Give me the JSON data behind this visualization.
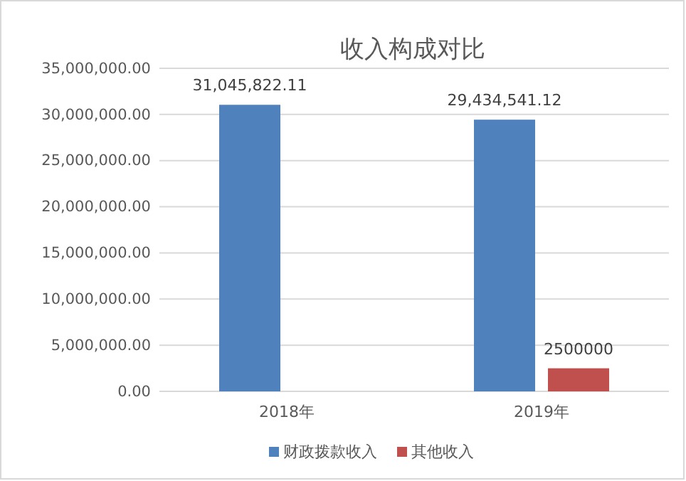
{
  "chart_data": {
    "type": "bar",
    "title": "收入构成对比",
    "categories": [
      "2018年",
      "2019年"
    ],
    "series": [
      {
        "name": "财政拨款收入",
        "color": "#4f81bd",
        "values": [
          31045822.11,
          29434541.12
        ],
        "value_labels": [
          "31,045,822.11",
          "29,434,541.12"
        ]
      },
      {
        "name": "其他收入",
        "color": "#c0504d",
        "values": [
          null,
          2500000
        ],
        "value_labels": [
          null,
          "2500000"
        ]
      }
    ],
    "ylim": [
      0,
      35000000
    ],
    "yticks": [
      {
        "value": 0,
        "label": "0.00"
      },
      {
        "value": 5000000,
        "label": "5,000,000.00"
      },
      {
        "value": 10000000,
        "label": "10,000,000.00"
      },
      {
        "value": 15000000,
        "label": "15,000,000.00"
      },
      {
        "value": 20000000,
        "label": "20,000,000.00"
      },
      {
        "value": 25000000,
        "label": "25,000,000.00"
      },
      {
        "value": 30000000,
        "label": "30,000,000.00"
      },
      {
        "value": 35000000,
        "label": "35,000,000.00"
      }
    ],
    "grid": "y",
    "legend": "bottom"
  }
}
